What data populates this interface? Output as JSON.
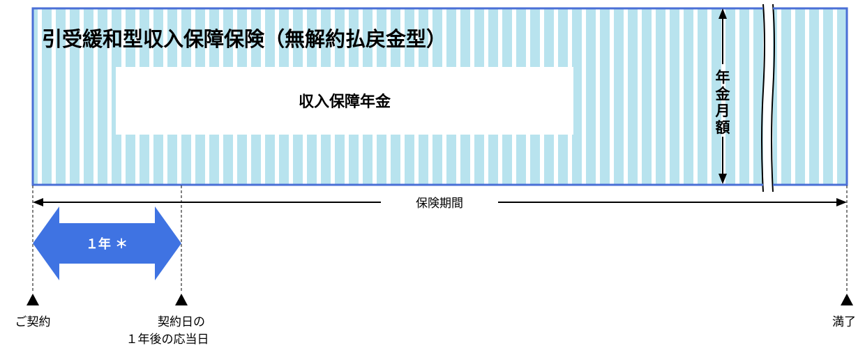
{
  "product_title": "引受緩和型収入保障保険（無解約払戻金型）",
  "benefit_label": "収入保障年金",
  "vertical_label": "年金月額",
  "period_label": "保険期間",
  "first_year_label": "１年 ＊",
  "milestones": {
    "start": "ご契約",
    "anniversary_line1": "契約日の",
    "anniversary_line2": "１年後の応当日",
    "end": "満了"
  },
  "colors": {
    "frame_border": "#4a6fd6",
    "stripe": "#b8e3ee",
    "stripe_gap": "#ffffff",
    "arrow_fill": "#3f73e2",
    "ink": "#000000"
  }
}
